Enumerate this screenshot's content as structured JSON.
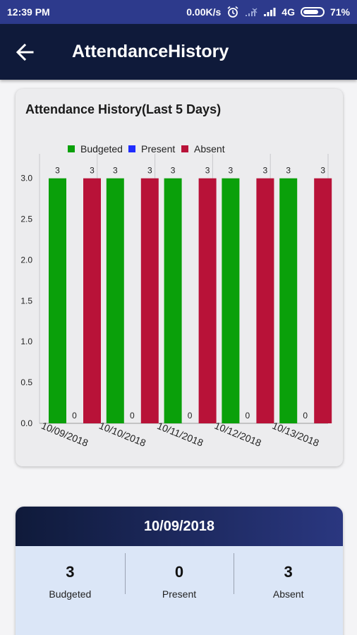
{
  "status_bar": {
    "time": "12:39 PM",
    "speed": "0.00K/s",
    "network": "4G",
    "battery": "71%"
  },
  "app_bar": {
    "title": "AttendanceHistory"
  },
  "chart_card": {
    "title": "Attendance History(Last 5 Days)"
  },
  "chart_data": {
    "type": "bar",
    "title": "Attendance History(Last 5 Days)",
    "categories": [
      "10/09/2018",
      "10/10/2018",
      "10/11/2018",
      "10/12/2018",
      "10/13/2018"
    ],
    "series": [
      {
        "name": "Budgeted",
        "color": "#0aa00a",
        "values": [
          3,
          3,
          3,
          3,
          3
        ]
      },
      {
        "name": "Present",
        "color": "#1f2cff",
        "values": [
          0,
          0,
          0,
          0,
          0
        ]
      },
      {
        "name": "Absent",
        "color": "#b81238",
        "values": [
          3,
          3,
          3,
          3,
          3
        ]
      }
    ],
    "yticks": [
      "0.0",
      "0.5",
      "1.0",
      "1.5",
      "2.0",
      "2.5",
      "3.0"
    ],
    "ylim": [
      0,
      3.3
    ],
    "legend": "top-left",
    "grid": "vertical"
  },
  "summary": {
    "date": "10/09/2018",
    "stats": [
      {
        "value": "3",
        "label": "Budgeted"
      },
      {
        "value": "0",
        "label": "Present"
      },
      {
        "value": "3",
        "label": "Absent"
      }
    ]
  }
}
